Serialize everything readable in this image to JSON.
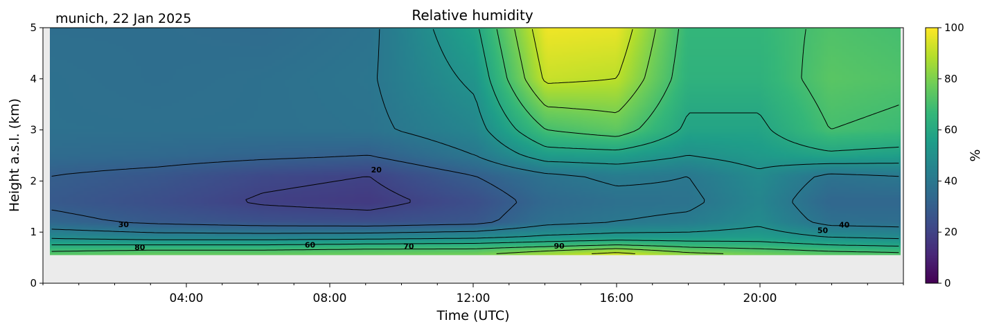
{
  "chart_data": {
    "type": "heatmap",
    "title": "Relative humidity",
    "subtitle": "munich, 22 Jan 2025",
    "xlabel": "Time (UTC)",
    "ylabel": "Height a.s.l. (km)",
    "x_range_hours": [
      0,
      24
    ],
    "y_range_km": [
      0,
      5
    ],
    "x_ticks": [
      {
        "value": 4,
        "label": "04:00"
      },
      {
        "value": 8,
        "label": "08:00"
      },
      {
        "value": 12,
        "label": "12:00"
      },
      {
        "value": 16,
        "label": "16:00"
      },
      {
        "value": 20,
        "label": "20:00"
      }
    ],
    "y_ticks": [
      {
        "value": 0,
        "label": "0"
      },
      {
        "value": 1,
        "label": "1"
      },
      {
        "value": 2,
        "label": "2"
      },
      {
        "value": 3,
        "label": "3"
      },
      {
        "value": 4,
        "label": "4"
      },
      {
        "value": 5,
        "label": "5"
      }
    ],
    "colorbar": {
      "label": "%",
      "range": [
        0,
        100
      ],
      "colormap": "viridis",
      "ticks": [
        {
          "value": 0,
          "label": "0"
        },
        {
          "value": 20,
          "label": "20"
        },
        {
          "value": 40,
          "label": "40"
        },
        {
          "value": 60,
          "label": "60"
        },
        {
          "value": 80,
          "label": "80"
        },
        {
          "value": 100,
          "label": "100"
        }
      ]
    },
    "no_data_below_km": 0.55,
    "no_data_color": "#ebebeb",
    "contour_levels": [
      20,
      30,
      40,
      50,
      60,
      70,
      80,
      90
    ],
    "contour_labels": [
      {
        "text": "20",
        "x": 9.3,
        "y": 2.17
      },
      {
        "text": "30",
        "x": 2.25,
        "y": 1.1
      },
      {
        "text": "80",
        "x": 2.7,
        "y": 0.65
      },
      {
        "text": "60",
        "x": 7.45,
        "y": 0.7
      },
      {
        "text": "70",
        "x": 10.2,
        "y": 0.67
      },
      {
        "text": "90",
        "x": 14.4,
        "y": 0.68
      },
      {
        "text": "50",
        "x": 21.75,
        "y": 0.98
      },
      {
        "text": "40",
        "x": 22.35,
        "y": 1.09
      }
    ],
    "humidity_profiles": [
      {
        "time": 0,
        "heights": [
          0.55,
          0.65,
          0.75,
          0.9,
          1.2,
          1.6,
          2.1,
          2.5,
          3.0,
          4.0,
          5.0
        ],
        "values": [
          75,
          68,
          60,
          48,
          33,
          28,
          30,
          35,
          37,
          37,
          36
        ]
      },
      {
        "time": 3,
        "heights": [
          0.55,
          0.65,
          0.75,
          0.9,
          1.2,
          1.6,
          2.1,
          2.5,
          3.0,
          4.0,
          5.0
        ],
        "values": [
          78,
          70,
          60,
          45,
          28,
          24,
          27,
          34,
          37,
          36,
          36
        ]
      },
      {
        "time": 6,
        "heights": [
          0.55,
          0.65,
          0.75,
          0.9,
          1.2,
          1.6,
          2.1,
          2.5,
          3.0,
          4.0,
          5.0
        ],
        "values": [
          78,
          70,
          60,
          45,
          25,
          19,
          22,
          32,
          37,
          37,
          35
        ]
      },
      {
        "time": 9,
        "heights": [
          0.55,
          0.65,
          0.75,
          0.9,
          1.2,
          1.6,
          2.1,
          2.5,
          3.0,
          4.0,
          5.0
        ],
        "values": [
          78,
          72,
          62,
          46,
          24,
          17,
          20,
          30,
          38,
          39,
          38
        ]
      },
      {
        "time": 12,
        "heights": [
          0.55,
          0.65,
          0.75,
          0.9,
          1.2,
          1.6,
          2.1,
          2.5,
          3.0,
          4.0,
          5.0
        ],
        "values": [
          80,
          72,
          63,
          48,
          27,
          24,
          30,
          40,
          46,
          52,
          58
        ]
      },
      {
        "time": 14,
        "heights": [
          0.55,
          0.65,
          0.75,
          0.9,
          1.2,
          1.6,
          2.1,
          2.5,
          3.0,
          4.0,
          5.0
        ],
        "values": [
          88,
          78,
          66,
          52,
          37,
          34,
          38,
          55,
          70,
          92,
          98
        ]
      },
      {
        "time": 16,
        "heights": [
          0.55,
          0.65,
          0.75,
          0.9,
          1.2,
          1.6,
          2.1,
          2.5,
          3.0,
          4.0,
          5.0
        ],
        "values": [
          96,
          84,
          70,
          54,
          40,
          37,
          42,
          56,
          75,
          90,
          97
        ]
      },
      {
        "time": 18,
        "heights": [
          0.55,
          0.65,
          0.75,
          0.9,
          1.2,
          1.6,
          2.1,
          2.5,
          3.0,
          4.0,
          5.0
        ],
        "values": [
          85,
          75,
          66,
          54,
          42,
          38,
          40,
          50,
          58,
          64,
          66
        ]
      },
      {
        "time": 20,
        "heights": [
          0.55,
          0.65,
          0.75,
          0.9,
          1.2,
          1.6,
          2.1,
          2.5,
          3.0,
          4.0,
          5.0
        ],
        "values": [
          80,
          72,
          64,
          55,
          48,
          46,
          48,
          54,
          58,
          64,
          66
        ]
      },
      {
        "time": 22,
        "heights": [
          0.55,
          0.65,
          0.75,
          0.9,
          1.2,
          1.6,
          2.1,
          2.5,
          3.0,
          4.0,
          5.0
        ],
        "values": [
          76,
          68,
          60,
          50,
          37,
          33,
          38,
          58,
          70,
          74,
          72
        ]
      },
      {
        "time": 24,
        "heights": [
          0.55,
          0.65,
          0.75,
          0.9,
          1.2,
          1.6,
          2.1,
          2.5,
          3.0,
          4.0,
          5.0
        ],
        "values": [
          74,
          66,
          58,
          48,
          36,
          33,
          40,
          56,
          68,
          72,
          70
        ]
      }
    ]
  }
}
